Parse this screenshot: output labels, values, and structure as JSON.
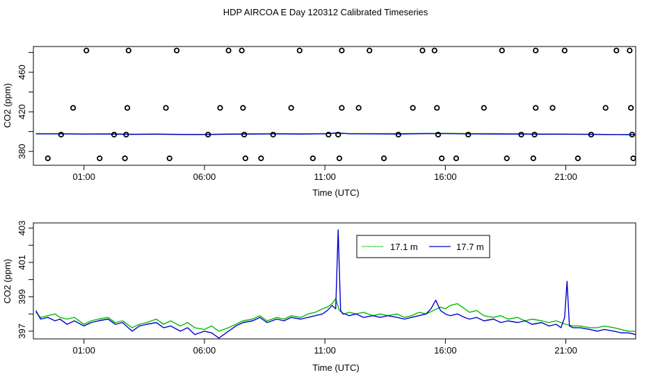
{
  "figure_title": "HDP AIRCOA E  Day 120312  Calibrated Timeseries",
  "chart_data": [
    {
      "type": "scatter",
      "xlabel": "Time (UTC)",
      "ylabel": "CO2 (ppm)",
      "x_unit": "hours UTC",
      "xlim": [
        -1.1,
        23.9
      ],
      "ylim": [
        366,
        486
      ],
      "xticks": [
        {
          "value": 1,
          "label": "01:00"
        },
        {
          "value": 6,
          "label": "06:00"
        },
        {
          "value": 11,
          "label": "11:00"
        },
        {
          "value": 16,
          "label": "16:00"
        },
        {
          "value": 21,
          "label": "21:00"
        }
      ],
      "yticks": [
        {
          "value": 380,
          "label": "380"
        },
        {
          "value": 420,
          "label": "420"
        },
        {
          "value": 460,
          "label": "460"
        }
      ],
      "grid": false,
      "calibration_points": [
        [
          1.1,
          482
        ],
        [
          2.85,
          482
        ],
        [
          4.85,
          482
        ],
        [
          7.0,
          482
        ],
        [
          7.55,
          482
        ],
        [
          9.95,
          482
        ],
        [
          11.7,
          482
        ],
        [
          12.85,
          482
        ],
        [
          15.05,
          482
        ],
        [
          15.55,
          482
        ],
        [
          18.35,
          482
        ],
        [
          19.75,
          482
        ],
        [
          20.95,
          482
        ],
        [
          23.1,
          482
        ],
        [
          23.65,
          482
        ],
        [
          0.55,
          424
        ],
        [
          2.8,
          424
        ],
        [
          4.4,
          424
        ],
        [
          6.65,
          424
        ],
        [
          7.6,
          424
        ],
        [
          9.6,
          424
        ],
        [
          11.7,
          424
        ],
        [
          12.4,
          424
        ],
        [
          14.65,
          424
        ],
        [
          15.65,
          424
        ],
        [
          17.6,
          424
        ],
        [
          19.75,
          424
        ],
        [
          20.45,
          424
        ],
        [
          22.65,
          424
        ],
        [
          23.7,
          424
        ],
        [
          0.05,
          397
        ],
        [
          2.25,
          397
        ],
        [
          2.75,
          397
        ],
        [
          6.15,
          397
        ],
        [
          7.65,
          397
        ],
        [
          8.85,
          397
        ],
        [
          11.15,
          397
        ],
        [
          11.55,
          397
        ],
        [
          14.05,
          397
        ],
        [
          15.7,
          397
        ],
        [
          16.95,
          397
        ],
        [
          19.15,
          397
        ],
        [
          19.7,
          397
        ],
        [
          22.05,
          397
        ],
        [
          23.75,
          397
        ],
        [
          -0.5,
          373
        ],
        [
          1.65,
          373
        ],
        [
          2.7,
          373
        ],
        [
          4.55,
          373
        ],
        [
          7.7,
          373
        ],
        [
          8.35,
          373
        ],
        [
          10.5,
          373
        ],
        [
          11.6,
          373
        ],
        [
          13.45,
          373
        ],
        [
          15.85,
          373
        ],
        [
          16.45,
          373
        ],
        [
          18.55,
          373
        ],
        [
          19.65,
          373
        ],
        [
          21.5,
          373
        ],
        [
          23.8,
          373
        ]
      ],
      "series": [
        {
          "name": "17.1 m",
          "color": "#00bb00",
          "x": [
            -1.0,
            0.0,
            1.0,
            2.0,
            3.0,
            4.0,
            5.0,
            6.0,
            7.0,
            8.0,
            9.0,
            10.0,
            11.0,
            11.5,
            12.0,
            13.0,
            14.0,
            15.0,
            16.0,
            17.0,
            18.0,
            19.0,
            20.0,
            21.0,
            22.0,
            23.0,
            23.9
          ],
          "values": [
            398,
            398,
            397.6,
            397.8,
            397.4,
            397.6,
            397.3,
            397.2,
            397.6,
            397.8,
            397.9,
            397.8,
            398,
            398.3,
            398,
            398,
            397.9,
            398.1,
            398.2,
            398,
            397.9,
            397.8,
            397.6,
            397.5,
            397.3,
            397.1,
            397
          ]
        },
        {
          "name": "17.7 m",
          "color": "#0000cc",
          "x": [
            -1.0,
            0.0,
            1.0,
            2.0,
            3.0,
            4.0,
            5.0,
            6.0,
            7.0,
            8.0,
            9.0,
            10.0,
            11.0,
            11.5,
            12.0,
            13.0,
            14.0,
            15.0,
            16.0,
            17.0,
            18.0,
            19.0,
            20.0,
            21.0,
            22.0,
            23.0,
            23.9
          ],
          "values": [
            397.7,
            397.7,
            397.5,
            397.6,
            397.2,
            397.4,
            397.1,
            397,
            397.4,
            397.6,
            397.7,
            397.6,
            397.8,
            398.8,
            397.8,
            397.7,
            397.6,
            397.9,
            398,
            397.7,
            397.6,
            397.5,
            397.4,
            397.4,
            397.2,
            397,
            396.9
          ]
        }
      ]
    },
    {
      "type": "line",
      "xlabel": "Time (UTC)",
      "ylabel": "CO2 (ppm)",
      "x_unit": "hours UTC",
      "xlim": [
        -1.1,
        23.9
      ],
      "ylim": [
        396.55,
        403.3
      ],
      "xticks": [
        {
          "value": 1,
          "label": "01:00"
        },
        {
          "value": 6,
          "label": "06:00"
        },
        {
          "value": 11,
          "label": "11:00"
        },
        {
          "value": 16,
          "label": "16:00"
        },
        {
          "value": 21,
          "label": "21:00"
        }
      ],
      "yticks": [
        {
          "value": 397,
          "label": "397"
        },
        {
          "value": 399,
          "label": "399"
        },
        {
          "value": 401,
          "label": "401"
        },
        {
          "value": 403,
          "label": "403"
        }
      ],
      "grid": false,
      "legend": {
        "position": "top-center"
      },
      "series": [
        {
          "name": "17.1 m",
          "color": "#00bb00",
          "x": [
            -1.0,
            -0.8,
            -0.5,
            -0.2,
            0.0,
            0.3,
            0.6,
            1.0,
            1.3,
            1.6,
            2.0,
            2.3,
            2.6,
            3.0,
            3.3,
            3.6,
            4.0,
            4.3,
            4.6,
            5.0,
            5.3,
            5.6,
            6.0,
            6.3,
            6.6,
            7.0,
            7.3,
            7.6,
            8.0,
            8.3,
            8.6,
            9.0,
            9.3,
            9.6,
            10.0,
            10.3,
            10.6,
            10.9,
            11.1,
            11.3,
            11.45,
            11.6,
            11.8,
            12.0,
            12.3,
            12.6,
            13.0,
            13.3,
            13.6,
            14.0,
            14.3,
            14.6,
            14.9,
            15.2,
            15.5,
            15.8,
            16.0,
            16.2,
            16.5,
            16.8,
            17.0,
            17.3,
            17.6,
            18.0,
            18.3,
            18.6,
            19.0,
            19.3,
            19.6,
            20.0,
            20.3,
            20.6,
            20.8,
            21.0,
            21.3,
            21.6,
            22.0,
            22.3,
            22.6,
            23.0,
            23.3,
            23.6,
            23.9
          ],
          "values": [
            398.1,
            397.8,
            397.9,
            398.0,
            397.8,
            397.7,
            397.8,
            397.4,
            397.6,
            397.7,
            397.8,
            397.5,
            397.6,
            397.2,
            397.4,
            397.5,
            397.7,
            397.4,
            397.6,
            397.3,
            397.5,
            397.2,
            397.1,
            397.3,
            397.0,
            397.2,
            397.4,
            397.6,
            397.7,
            397.9,
            397.6,
            397.8,
            397.7,
            397.9,
            397.8,
            398.0,
            398.1,
            398.3,
            398.4,
            398.6,
            398.9,
            398.2,
            398.0,
            398.1,
            398.0,
            398.1,
            397.9,
            398.0,
            397.9,
            398.0,
            397.8,
            397.9,
            398.1,
            398.0,
            398.2,
            398.4,
            398.3,
            398.5,
            398.6,
            398.3,
            398.1,
            398.2,
            397.9,
            397.8,
            397.9,
            397.7,
            397.8,
            397.6,
            397.7,
            397.6,
            397.5,
            397.6,
            397.5,
            397.4,
            397.3,
            397.3,
            397.2,
            397.2,
            397.3,
            397.2,
            397.1,
            397.0,
            397.0
          ]
        },
        {
          "name": "17.7 m",
          "color": "#0000cc",
          "x": [
            -1.0,
            -0.8,
            -0.5,
            -0.2,
            0.0,
            0.3,
            0.6,
            1.0,
            1.3,
            1.6,
            2.0,
            2.3,
            2.6,
            3.0,
            3.3,
            3.6,
            4.0,
            4.3,
            4.6,
            5.0,
            5.3,
            5.6,
            6.0,
            6.3,
            6.6,
            7.0,
            7.3,
            7.6,
            8.0,
            8.3,
            8.6,
            9.0,
            9.3,
            9.6,
            10.0,
            10.3,
            10.6,
            10.9,
            11.1,
            11.3,
            11.45,
            11.55,
            11.65,
            11.75,
            11.85,
            12.0,
            12.3,
            12.6,
            13.0,
            13.3,
            13.6,
            14.0,
            14.3,
            14.6,
            14.9,
            15.2,
            15.4,
            15.6,
            15.8,
            16.0,
            16.2,
            16.5,
            16.8,
            17.0,
            17.3,
            17.6,
            18.0,
            18.3,
            18.6,
            19.0,
            19.3,
            19.6,
            20.0,
            20.3,
            20.6,
            20.8,
            20.95,
            21.05,
            21.15,
            21.3,
            21.6,
            22.0,
            22.3,
            22.6,
            23.0,
            23.3,
            23.6,
            23.9
          ],
          "values": [
            398.2,
            397.7,
            397.8,
            397.6,
            397.7,
            397.4,
            397.6,
            397.3,
            397.5,
            397.6,
            397.7,
            397.4,
            397.5,
            397.0,
            397.3,
            397.4,
            397.5,
            397.2,
            397.3,
            397.0,
            397.2,
            396.8,
            397.0,
            396.9,
            396.6,
            397.0,
            397.3,
            397.5,
            397.6,
            397.8,
            397.5,
            397.7,
            397.6,
            397.8,
            397.7,
            397.8,
            397.9,
            398.0,
            398.2,
            398.5,
            398.3,
            402.9,
            398.2,
            398.0,
            398.0,
            397.9,
            398.0,
            397.8,
            397.9,
            397.8,
            397.9,
            397.8,
            397.7,
            397.8,
            397.9,
            398.0,
            398.3,
            398.8,
            398.2,
            398.0,
            397.9,
            398.0,
            397.8,
            397.7,
            397.8,
            397.6,
            397.7,
            397.5,
            397.6,
            397.5,
            397.6,
            397.4,
            397.5,
            397.3,
            397.4,
            397.2,
            397.8,
            399.9,
            397.3,
            397.2,
            397.2,
            397.1,
            397.0,
            397.1,
            397.0,
            396.9,
            396.9,
            396.8
          ]
        }
      ]
    }
  ]
}
